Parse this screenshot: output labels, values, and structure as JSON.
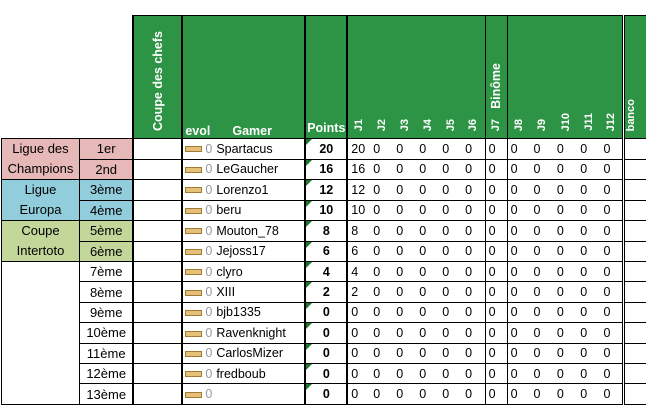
{
  "headers": {
    "coupe": "Coupe des chefs",
    "evol": "evol",
    "gamer": "Gamer",
    "points": "Points",
    "binome": "Binôme",
    "banco": "banco",
    "days": [
      "J1",
      "J2",
      "J3",
      "J4",
      "J5",
      "J6",
      "J7",
      "J8",
      "J9",
      "J10",
      "J11",
      "J12"
    ]
  },
  "groups": [
    {
      "label": "Ligue des Champions",
      "color": "#e6b8b7"
    },
    {
      "label": "Ligue Europa",
      "color": "#92cddc"
    },
    {
      "label": "Coupe Intertoto",
      "color": "#c4d79b"
    }
  ],
  "rows": [
    {
      "rank": "1er",
      "evol": "0",
      "gamer": "Spartacus",
      "points": "20",
      "days": [
        "20",
        "0",
        "0",
        "0",
        "0",
        "0",
        "0",
        "0",
        "0",
        "0",
        "0",
        "0"
      ]
    },
    {
      "rank": "2nd",
      "evol": "0",
      "gamer": "LeGaucher",
      "points": "16",
      "days": [
        "16",
        "0",
        "0",
        "0",
        "0",
        "0",
        "0",
        "0",
        "0",
        "0",
        "0",
        "0"
      ]
    },
    {
      "rank": "3ème",
      "evol": "0",
      "gamer": "Lorenzo1",
      "points": "12",
      "days": [
        "12",
        "0",
        "0",
        "0",
        "0",
        "0",
        "0",
        "0",
        "0",
        "0",
        "0",
        "0"
      ]
    },
    {
      "rank": "4ème",
      "evol": "0",
      "gamer": "beru",
      "points": "10",
      "days": [
        "10",
        "0",
        "0",
        "0",
        "0",
        "0",
        "0",
        "0",
        "0",
        "0",
        "0",
        "0"
      ]
    },
    {
      "rank": "5ème",
      "evol": "0",
      "gamer": "Mouton_78",
      "points": "8",
      "days": [
        "8",
        "0",
        "0",
        "0",
        "0",
        "0",
        "0",
        "0",
        "0",
        "0",
        "0",
        "0"
      ]
    },
    {
      "rank": "6ème",
      "evol": "0",
      "gamer": "Jejoss17",
      "points": "6",
      "days": [
        "6",
        "0",
        "0",
        "0",
        "0",
        "0",
        "0",
        "0",
        "0",
        "0",
        "0",
        "0"
      ]
    },
    {
      "rank": "7ème",
      "evol": "0",
      "gamer": "clyro",
      "points": "4",
      "days": [
        "4",
        "0",
        "0",
        "0",
        "0",
        "0",
        "0",
        "0",
        "0",
        "0",
        "0",
        "0"
      ]
    },
    {
      "rank": "8ème",
      "evol": "0",
      "gamer": "XIII",
      "points": "2",
      "days": [
        "2",
        "0",
        "0",
        "0",
        "0",
        "0",
        "0",
        "0",
        "0",
        "0",
        "0",
        "0"
      ]
    },
    {
      "rank": "9ème",
      "evol": "0",
      "gamer": "bjb1335",
      "points": "0",
      "days": [
        "0",
        "0",
        "0",
        "0",
        "0",
        "0",
        "0",
        "0",
        "0",
        "0",
        "0",
        "0"
      ]
    },
    {
      "rank": "10ème",
      "evol": "0",
      "gamer": "Ravenknight",
      "points": "0",
      "days": [
        "0",
        "0",
        "0",
        "0",
        "0",
        "0",
        "0",
        "0",
        "0",
        "0",
        "0",
        "0"
      ]
    },
    {
      "rank": "11ème",
      "evol": "0",
      "gamer": "CarlosMizer",
      "points": "0",
      "days": [
        "0",
        "0",
        "0",
        "0",
        "0",
        "0",
        "0",
        "0",
        "0",
        "0",
        "0",
        "0"
      ]
    },
    {
      "rank": "12ème",
      "evol": "0",
      "gamer": "fredboub",
      "points": "0",
      "days": [
        "0",
        "0",
        "0",
        "0",
        "0",
        "0",
        "0",
        "0",
        "0",
        "0",
        "0",
        "0"
      ]
    },
    {
      "rank": "13ème",
      "evol": "0",
      "gamer": "",
      "points": "0",
      "days": [
        "0",
        "0",
        "0",
        "0",
        "0",
        "0",
        "0",
        "0",
        "0",
        "0",
        "0",
        "0"
      ]
    }
  ]
}
